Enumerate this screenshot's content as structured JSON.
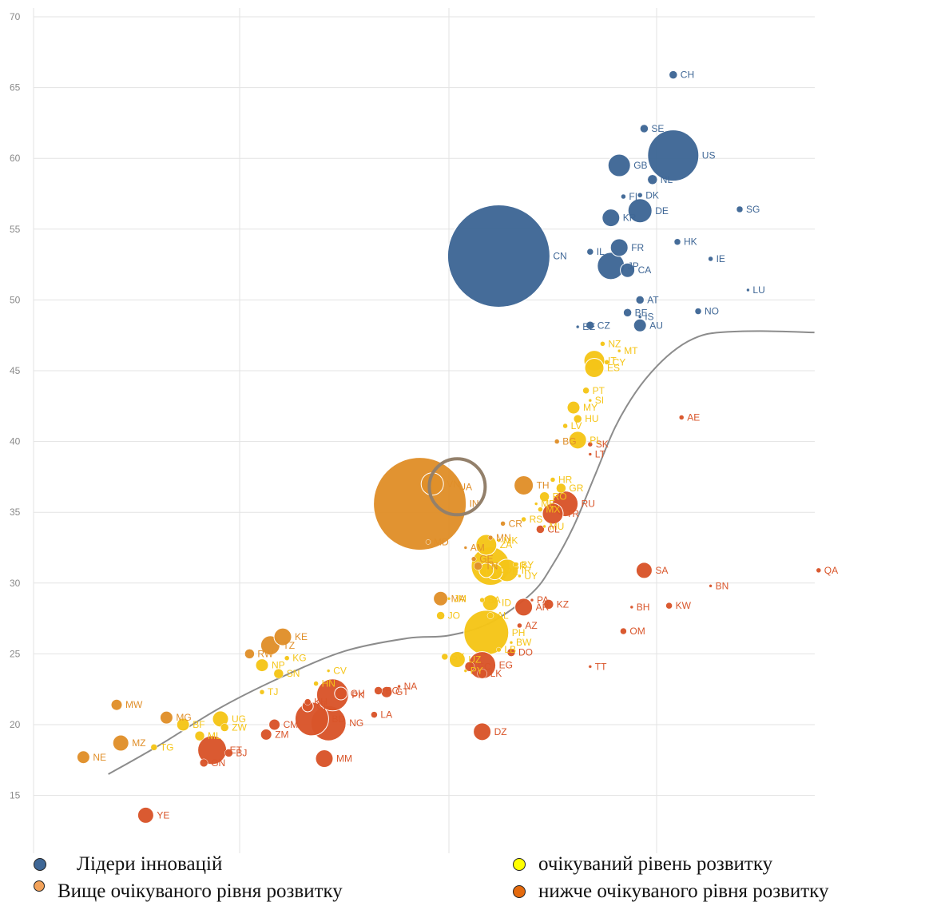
{
  "colors": {
    "leaders": "#3f6796",
    "above": "#e08f2a",
    "expected": "#f5c518",
    "below": "#d9552a",
    "trend": "#8c8c8c",
    "grid": "#e3e3e3",
    "ua_circle": "#93806b"
  },
  "chart_data": {
    "type": "scatter",
    "ylim": [
      13,
      70
    ],
    "y_ticks": [
      15,
      20,
      25,
      30,
      35,
      40,
      45,
      50,
      55,
      60,
      65,
      70
    ],
    "x_ticks_visible": false,
    "grid": true,
    "legend_position": "bottom",
    "groups": [
      {
        "key": "leaders",
        "name": "Лідери інновацій"
      },
      {
        "key": "expected",
        "name": "очікуваний рівень розвитку"
      },
      {
        "key": "above",
        "name": "Вище очікуваного рівня розвитку"
      },
      {
        "key": "below",
        "name": "нижче очікуваного рівня розвитку"
      }
    ],
    "trend_line": [
      [
        1.8,
        16.5
      ],
      [
        3,
        18.5
      ],
      [
        4.5,
        21.2
      ],
      [
        6,
        23.4
      ],
      [
        7.5,
        25.2
      ],
      [
        9,
        26.1
      ],
      [
        10,
        26.3
      ],
      [
        11,
        27.2
      ],
      [
        12,
        29.3
      ],
      [
        12.5,
        31.3
      ],
      [
        13,
        34.0
      ],
      [
        13.5,
        37.5
      ],
      [
        14,
        41.0
      ],
      [
        14.5,
        43.5
      ],
      [
        15,
        45.3
      ],
      [
        15.5,
        46.6
      ],
      [
        16,
        47.4
      ],
      [
        16.5,
        47.7
      ],
      [
        17.5,
        47.8
      ],
      [
        18.8,
        47.7
      ]
    ],
    "highlight": {
      "label": "UA",
      "x": 10.2,
      "y": 36.8
    },
    "points": [
      {
        "label": "CH",
        "x": 15.4,
        "y": 65.9,
        "group": "leaders",
        "size": 5
      },
      {
        "label": "SE",
        "x": 14.7,
        "y": 62.1,
        "group": "leaders",
        "size": 5
      },
      {
        "label": "US",
        "x": 15.4,
        "y": 60.2,
        "group": "leaders",
        "size": 32
      },
      {
        "label": "GB",
        "x": 14.1,
        "y": 59.5,
        "group": "leaders",
        "size": 14
      },
      {
        "label": "NL",
        "x": 14.9,
        "y": 58.5,
        "group": "leaders",
        "size": 6
      },
      {
        "label": "FI",
        "x": 14.2,
        "y": 57.3,
        "group": "leaders",
        "size": 3
      },
      {
        "label": "DK",
        "x": 14.6,
        "y": 57.4,
        "group": "leaders",
        "size": 3
      },
      {
        "label": "KR",
        "x": 13.9,
        "y": 55.8,
        "group": "leaders",
        "size": 11
      },
      {
        "label": "DE",
        "x": 14.6,
        "y": 56.3,
        "group": "leaders",
        "size": 15
      },
      {
        "label": "SG",
        "x": 17.0,
        "y": 56.4,
        "group": "leaders",
        "size": 4
      },
      {
        "label": "HK",
        "x": 15.5,
        "y": 54.1,
        "group": "leaders",
        "size": 4
      },
      {
        "label": "FR",
        "x": 14.1,
        "y": 53.7,
        "group": "leaders",
        "size": 11
      },
      {
        "label": "IL",
        "x": 13.4,
        "y": 53.4,
        "group": "leaders",
        "size": 4
      },
      {
        "label": "JP",
        "x": 13.9,
        "y": 52.4,
        "group": "leaders",
        "size": 17
      },
      {
        "label": "CA",
        "x": 14.3,
        "y": 52.1,
        "group": "leaders",
        "size": 9
      },
      {
        "label": "IE",
        "x": 16.3,
        "y": 52.9,
        "group": "leaders",
        "size": 3
      },
      {
        "label": "CN",
        "x": 11.2,
        "y": 53.1,
        "group": "leaders",
        "size": 64
      },
      {
        "label": "LU",
        "x": 17.2,
        "y": 50.7,
        "group": "leaders",
        "size": 2
      },
      {
        "label": "AT",
        "x": 14.6,
        "y": 50.0,
        "group": "leaders",
        "size": 5
      },
      {
        "label": "BE",
        "x": 14.3,
        "y": 49.1,
        "group": "leaders",
        "size": 5
      },
      {
        "label": "IS",
        "x": 14.6,
        "y": 48.8,
        "group": "leaders",
        "size": 2
      },
      {
        "label": "NO",
        "x": 16.0,
        "y": 49.2,
        "group": "leaders",
        "size": 4
      },
      {
        "label": "EE",
        "x": 13.1,
        "y": 48.1,
        "group": "leaders",
        "size": 2
      },
      {
        "label": "CZ",
        "x": 13.4,
        "y": 48.2,
        "group": "leaders",
        "size": 5
      },
      {
        "label": "AU",
        "x": 14.6,
        "y": 48.2,
        "group": "leaders",
        "size": 8
      },
      {
        "label": "NZ",
        "x": 13.7,
        "y": 46.9,
        "group": "expected",
        "size": 3
      },
      {
        "label": "IT",
        "x": 13.5,
        "y": 45.7,
        "group": "expected",
        "size": 13
      },
      {
        "label": "CY",
        "x": 13.8,
        "y": 45.6,
        "group": "expected",
        "size": 3
      },
      {
        "label": "MT",
        "x": 14.1,
        "y": 46.4,
        "group": "expected",
        "size": 2
      },
      {
        "label": "ES",
        "x": 13.5,
        "y": 45.2,
        "group": "expected",
        "size": 12
      },
      {
        "label": "PT",
        "x": 13.3,
        "y": 43.6,
        "group": "expected",
        "size": 4
      },
      {
        "label": "MY",
        "x": 13.0,
        "y": 42.4,
        "group": "expected",
        "size": 8
      },
      {
        "label": "SI",
        "x": 13.4,
        "y": 42.9,
        "group": "expected",
        "size": 2
      },
      {
        "label": "HU",
        "x": 13.1,
        "y": 41.6,
        "group": "expected",
        "size": 5
      },
      {
        "label": "LV",
        "x": 12.8,
        "y": 41.1,
        "group": "expected",
        "size": 3
      },
      {
        "label": "SK",
        "x": 13.4,
        "y": 39.8,
        "group": "below",
        "size": 3
      },
      {
        "label": "PL",
        "x": 13.1,
        "y": 40.1,
        "group": "expected",
        "size": 11
      },
      {
        "label": "LT",
        "x": 13.4,
        "y": 39.1,
        "group": "below",
        "size": 2
      },
      {
        "label": "BG",
        "x": 12.6,
        "y": 40.0,
        "group": "above",
        "size": 3
      },
      {
        "label": "TH",
        "x": 11.8,
        "y": 36.9,
        "group": "above",
        "size": 12
      },
      {
        "label": "HR",
        "x": 12.5,
        "y": 37.3,
        "group": "expected",
        "size": 3
      },
      {
        "label": "GR",
        "x": 12.7,
        "y": 36.7,
        "group": "expected",
        "size": 6
      },
      {
        "label": "RO",
        "x": 12.3,
        "y": 36.1,
        "group": "expected",
        "size": 6
      },
      {
        "label": "RU",
        "x": 12.8,
        "y": 35.6,
        "group": "below",
        "size": 16
      },
      {
        "label": "ME",
        "x": 12.1,
        "y": 35.6,
        "group": "expected",
        "size": 2
      },
      {
        "label": "MX",
        "x": 12.2,
        "y": 35.2,
        "group": "expected",
        "size": 3
      },
      {
        "label": "TR",
        "x": 12.5,
        "y": 34.9,
        "group": "below",
        "size": 13
      },
      {
        "label": "RS",
        "x": 11.8,
        "y": 34.5,
        "group": "expected",
        "size": 3
      },
      {
        "label": "MU",
        "x": 12.3,
        "y": 34.0,
        "group": "expected",
        "size": 2
      },
      {
        "label": "CR",
        "x": 11.3,
        "y": 34.2,
        "group": "above",
        "size": 3
      },
      {
        "label": "CL",
        "x": 12.2,
        "y": 33.8,
        "group": "below",
        "size": 5
      },
      {
        "label": "MN",
        "x": 11.0,
        "y": 33.2,
        "group": "above",
        "size": 3
      },
      {
        "label": "MK",
        "x": 11.2,
        "y": 33.0,
        "group": "expected",
        "size": 2
      },
      {
        "label": "ZA",
        "x": 10.9,
        "y": 32.7,
        "group": "expected",
        "size": 13
      },
      {
        "label": "AM",
        "x": 10.4,
        "y": 32.5,
        "group": "above",
        "size": 2
      },
      {
        "label": "GE",
        "x": 10.6,
        "y": 31.7,
        "group": "above",
        "size": 3
      },
      {
        "label": "BR",
        "x": 11.0,
        "y": 31.2,
        "group": "expected",
        "size": 24
      },
      {
        "label": "BY",
        "x": 11.6,
        "y": 31.3,
        "group": "expected",
        "size": 3
      },
      {
        "label": "TN",
        "x": 10.7,
        "y": 31.2,
        "group": "above",
        "size": 5
      },
      {
        "label": "CO",
        "x": 10.9,
        "y": 30.9,
        "group": "expected",
        "size": 9
      },
      {
        "label": "PE",
        "x": 11.1,
        "y": 30.8,
        "group": "expected",
        "size": 10
      },
      {
        "label": "IR",
        "x": 11.4,
        "y": 30.9,
        "group": "expected",
        "size": 14
      },
      {
        "label": "UY",
        "x": 11.7,
        "y": 30.5,
        "group": "expected",
        "size": 2
      },
      {
        "label": "IN",
        "x": 9.3,
        "y": 35.6,
        "group": "above",
        "size": 58
      },
      {
        "label": "VN",
        "x": 9.6,
        "y": 37.0,
        "group": "above",
        "size": 14
      },
      {
        "label": "MD",
        "x": 9.5,
        "y": 32.9,
        "group": "above",
        "size": 3
      },
      {
        "label": "SA",
        "x": 14.7,
        "y": 30.9,
        "group": "below",
        "size": 10
      },
      {
        "label": "QA",
        "x": 18.9,
        "y": 30.9,
        "group": "below",
        "size": 3
      },
      {
        "label": "BN",
        "x": 16.3,
        "y": 29.8,
        "group": "below",
        "size": 2
      },
      {
        "label": "KW",
        "x": 15.3,
        "y": 28.4,
        "group": "below",
        "size": 4
      },
      {
        "label": "BH",
        "x": 14.4,
        "y": 28.3,
        "group": "below",
        "size": 2
      },
      {
        "label": "OM",
        "x": 14.2,
        "y": 26.6,
        "group": "below",
        "size": 4
      },
      {
        "label": "MA",
        "x": 9.8,
        "y": 28.9,
        "group": "above",
        "size": 9
      },
      {
        "label": "JM",
        "x": 10.0,
        "y": 28.9,
        "group": "expected",
        "size": 2
      },
      {
        "label": "BA",
        "x": 10.8,
        "y": 28.8,
        "group": "expected",
        "size": 3
      },
      {
        "label": "ID",
        "x": 11.0,
        "y": 28.6,
        "group": "expected",
        "size": 10
      },
      {
        "label": "JO",
        "x": 9.8,
        "y": 27.7,
        "group": "expected",
        "size": 5
      },
      {
        "label": "AR",
        "x": 11.8,
        "y": 28.3,
        "group": "below",
        "size": 11
      },
      {
        "label": "PA",
        "x": 12.0,
        "y": 28.8,
        "group": "below",
        "size": 2
      },
      {
        "label": "KZ",
        "x": 12.4,
        "y": 28.5,
        "group": "below",
        "size": 6
      },
      {
        "label": "AL",
        "x": 11.0,
        "y": 27.7,
        "group": "expected",
        "size": 4
      },
      {
        "label": "AZ",
        "x": 11.7,
        "y": 27.0,
        "group": "below",
        "size": 3
      },
      {
        "label": "PH",
        "x": 10.9,
        "y": 26.5,
        "group": "expected",
        "size": 28
      },
      {
        "label": "BW",
        "x": 11.5,
        "y": 25.8,
        "group": "expected",
        "size": 2
      },
      {
        "label": "LB",
        "x": 11.2,
        "y": 25.3,
        "group": "expected",
        "size": 3
      },
      {
        "label": "DO",
        "x": 11.5,
        "y": 25.1,
        "group": "below",
        "size": 5
      },
      {
        "label": "TT",
        "x": 13.4,
        "y": 24.1,
        "group": "below",
        "size": 2
      },
      {
        "label": "AE",
        "x": 15.6,
        "y": 41.7,
        "group": "below",
        "size": 3
      },
      {
        "label": "SV",
        "x": 9.9,
        "y": 24.8,
        "group": "expected",
        "size": 4
      },
      {
        "label": "UZ",
        "x": 10.2,
        "y": 24.6,
        "group": "expected",
        "size": 10
      },
      {
        "label": "EC",
        "x": 10.5,
        "y": 24.1,
        "group": "below",
        "size": 6
      },
      {
        "label": "EG",
        "x": 10.8,
        "y": 24.2,
        "group": "below",
        "size": 17
      },
      {
        "label": "PY",
        "x": 10.4,
        "y": 23.8,
        "group": "expected",
        "size": 2
      },
      {
        "label": "LK",
        "x": 10.8,
        "y": 23.6,
        "group": "below",
        "size": 6
      },
      {
        "label": "TZ",
        "x": 5.7,
        "y": 25.6,
        "group": "above",
        "size": 12
      },
      {
        "label": "KE",
        "x": 6.0,
        "y": 26.2,
        "group": "above",
        "size": 11
      },
      {
        "label": "RW",
        "x": 5.2,
        "y": 25.0,
        "group": "above",
        "size": 6
      },
      {
        "label": "KG",
        "x": 6.1,
        "y": 24.7,
        "group": "expected",
        "size": 3
      },
      {
        "label": "NP",
        "x": 5.5,
        "y": 24.2,
        "group": "expected",
        "size": 8
      },
      {
        "label": "SN",
        "x": 5.9,
        "y": 23.6,
        "group": "expected",
        "size": 6
      },
      {
        "label": "CV",
        "x": 7.1,
        "y": 23.8,
        "group": "expected",
        "size": 2
      },
      {
        "label": "HN",
        "x": 6.8,
        "y": 22.9,
        "group": "expected",
        "size": 3
      },
      {
        "label": "PK",
        "x": 7.2,
        "y": 22.1,
        "group": "below",
        "size": 20
      },
      {
        "label": "GH",
        "x": 7.4,
        "y": 22.2,
        "group": "below",
        "size": 8
      },
      {
        "label": "KH",
        "x": 6.6,
        "y": 21.6,
        "group": "below",
        "size": 4
      },
      {
        "label": "CI",
        "x": 6.6,
        "y": 21.3,
        "group": "below",
        "size": 7
      },
      {
        "label": "BO",
        "x": 8.3,
        "y": 22.4,
        "group": "below",
        "size": 5
      },
      {
        "label": "GT",
        "x": 8.5,
        "y": 22.3,
        "group": "below",
        "size": 7
      },
      {
        "label": "NA",
        "x": 8.8,
        "y": 22.7,
        "group": "below",
        "size": 2
      },
      {
        "label": "TJ",
        "x": 5.5,
        "y": 22.3,
        "group": "expected",
        "size": 3
      },
      {
        "label": "MW",
        "x": 2.0,
        "y": 21.4,
        "group": "above",
        "size": 7
      },
      {
        "label": "MG",
        "x": 3.2,
        "y": 20.5,
        "group": "above",
        "size": 8
      },
      {
        "label": "BF",
        "x": 3.6,
        "y": 20.0,
        "group": "expected",
        "size": 8
      },
      {
        "label": "UG",
        "x": 4.5,
        "y": 20.4,
        "group": "expected",
        "size": 10
      },
      {
        "label": "ZW",
        "x": 4.6,
        "y": 19.8,
        "group": "expected",
        "size": 5
      },
      {
        "label": "CM",
        "x": 5.8,
        "y": 20.0,
        "group": "below",
        "size": 7
      },
      {
        "label": "BD",
        "x": 6.7,
        "y": 20.4,
        "group": "below",
        "size": 21
      },
      {
        "label": "NG",
        "x": 7.1,
        "y": 20.1,
        "group": "below",
        "size": 22
      },
      {
        "label": "ML",
        "x": 4.0,
        "y": 19.2,
        "group": "expected",
        "size": 6
      },
      {
        "label": "ET",
        "x": 4.3,
        "y": 18.2,
        "group": "below",
        "size": 18
      },
      {
        "label": "GN",
        "x": 4.1,
        "y": 17.3,
        "group": "below",
        "size": 5
      },
      {
        "label": "ZM",
        "x": 5.6,
        "y": 19.3,
        "group": "below",
        "size": 7
      },
      {
        "label": "LA",
        "x": 8.2,
        "y": 20.7,
        "group": "below",
        "size": 4
      },
      {
        "label": "DZ",
        "x": 10.8,
        "y": 19.5,
        "group": "below",
        "size": 11
      },
      {
        "label": "NE",
        "x": 1.2,
        "y": 17.7,
        "group": "above",
        "size": 8
      },
      {
        "label": "MZ",
        "x": 2.1,
        "y": 18.7,
        "group": "above",
        "size": 10
      },
      {
        "label": "TG",
        "x": 2.9,
        "y": 18.4,
        "group": "expected",
        "size": 4
      },
      {
        "label": "BJ",
        "x": 4.7,
        "y": 18.0,
        "group": "below",
        "size": 5
      },
      {
        "label": "MM",
        "x": 7.0,
        "y": 17.6,
        "group": "below",
        "size": 11
      },
      {
        "label": "YE",
        "x": 2.7,
        "y": 13.6,
        "group": "below",
        "size": 10
      }
    ]
  },
  "legend": {
    "leaders": "Лідери інновацій",
    "expected": "очікуваний рівень розвитку",
    "above": "Вище очікуваного рівня розвитку",
    "below": "нижче очікуваного рівня розвитку"
  }
}
